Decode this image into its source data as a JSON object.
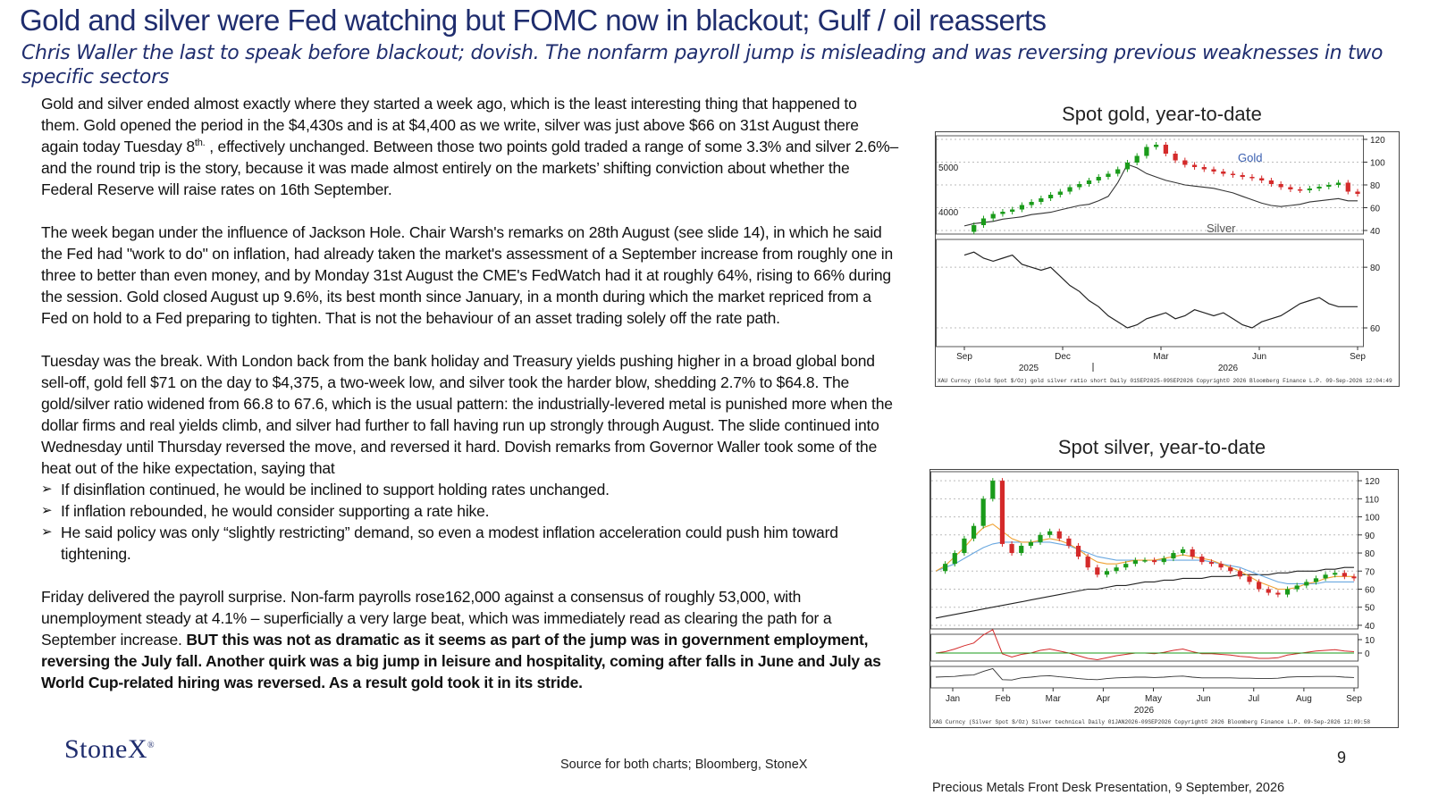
{
  "title": "Gold and silver were Fed watching but FOMC now in blackout; Gulf / oil reasserts",
  "subtitle": "Chris Waller the last to speak before blackout; dovish.  The nonfarm payroll jump is misleading and was reversing previous weaknesses in two specific sectors",
  "body": {
    "p1": "Gold and silver ended almost exactly where they started a week ago, which is the least interesting thing that happened to them. Gold opened the period in the $4,430s and is at $4,400 as we write, silver was just above $66 on 31st August there again today Tuesday 8",
    "p1_sup": "th.",
    "p1_end": " , effectively unchanged. Between those two points gold traded a range of some 3.3% and silver 2.6%– and the round trip is the story, because it was made almost entirely on the markets’ shifting conviction about whether the Federal Reserve will raise rates on 16th  September.",
    "p2": "The week began under the influence of Jackson Hole. Chair Warsh's remarks on 28th August (see slide 14), in which he said the Fed had \"work to do\" on inflation, had already taken the market's assessment of a September increase from roughly one in three to better than even money, and by Monday 31st August the CME's FedWatch had it at roughly 64%, rising to 66% during the session. Gold closed August up 9.6%, its best month since January, in a month during which the market repriced from a Fed on hold to a Fed preparing to tighten. That is not the behaviour of an asset trading solely off the rate path.",
    "p3": "Tuesday was the break. With London back from the bank holiday and Treasury yields pushing higher in a broad global bond sell-off, gold fell $71 on the day to $4,375, a two-week low, and silver took the harder blow, shedding 2.7% to $64.8. The gold/silver ratio widened from 66.8 to 67.6, which is the usual pattern: the industrially-levered metal is punished more when the dollar firms and real yields climb, and silver had further to fall having run up strongly through August. The slide continued into Wednesday  until Thursday reversed the move, and reversed it hard. Dovish remarks from Governor Waller took some of the heat out of the hike expectation, saying that",
    "bullet_marker": "➢",
    "bullets": [
      "If disinflation continued, he would be inclined to support holding rates unchanged.",
      "If inflation rebounded, he would consider supporting a rate hike.",
      "He said policy was only “slightly restricting” demand, so even a modest inflation acceleration could push him toward tightening."
    ],
    "p4": " Friday delivered the payroll surprise. Non-farm payrolls rose162,000 against a consensus of roughly 53,000, with unemployment steady at 4.1% – superficially a very large beat, which was immediately read as clearing the path for a September increase. ",
    "p4_bold": " BUT this was not as dramatic as it seems as part of the jump was in government employment, reversing the July fall.  Another quirk was a big jump in leisure and hospitality, coming after falls in June and July as World Cup-related hiring was reversed.  As a result gold took it in its stride."
  },
  "chart_data": [
    {
      "type": "line",
      "title": "Spot gold, year-to-date",
      "series_labels": {
        "gold": "Gold",
        "silver": "Silver"
      },
      "x_ticks": [
        "Sep",
        "Dec",
        "Mar",
        "Jun",
        "Sep"
      ],
      "x_years": [
        "2025",
        "2026"
      ],
      "left_axis_ticks": [
        4000,
        5000
      ],
      "right_axis_ticks": [
        40,
        60,
        80,
        100,
        120
      ],
      "lower_panel_ticks": [
        60,
        80
      ],
      "footer_text": "XAU Curncy (Gold Spot  $/Oz) gold silver ratio short Daily 01SEP2025-09SEP2026    Copyright© 2026 Bloomberg Finance L.P.    09-Sep-2026 12:04:49",
      "gold_y": [
        3550,
        3700,
        3850,
        3950,
        4000,
        4050,
        4150,
        4220,
        4300,
        4380,
        4450,
        4550,
        4620,
        4700,
        4780,
        4850,
        4950,
        5100,
        5250,
        5450,
        5500,
        5300,
        5150,
        5050,
        5000,
        4950,
        4900,
        4850,
        4820,
        4780,
        4750,
        4700,
        4620,
        4550,
        4500,
        4480,
        4520,
        4560,
        4600,
        4650,
        4450,
        4400
      ],
      "silver_y": [
        44,
        46,
        47,
        48,
        50,
        51,
        52,
        54,
        55,
        56,
        58,
        60,
        62,
        63,
        66,
        70,
        82,
        98,
        95,
        90,
        87,
        84,
        82,
        80,
        79,
        78,
        77,
        75,
        73,
        70,
        67,
        64,
        62,
        61,
        62,
        63,
        65,
        66,
        67,
        68,
        66,
        66
      ],
      "ratio_y": [
        84,
        85,
        83,
        82,
        83,
        84,
        81,
        80,
        79,
        80,
        77,
        74,
        72,
        69,
        67,
        64,
        62,
        60,
        61,
        63,
        64,
        65,
        63,
        64,
        66,
        65,
        64,
        65,
        63,
        61,
        60,
        62,
        63,
        64,
        66,
        68,
        69,
        70,
        68,
        67,
        67,
        67
      ]
    },
    {
      "type": "line",
      "title": "Spot silver, year-to-date",
      "x_ticks": [
        "Jan",
        "Feb",
        "Mar",
        "Apr",
        "May",
        "Jun",
        "Jul",
        "Aug",
        "Sep"
      ],
      "x_year": "2026",
      "right_axis_ticks": [
        40,
        50,
        60,
        70,
        80,
        90,
        100,
        110,
        120
      ],
      "lower_panel_ticks": [
        0,
        10
      ],
      "footer_text": "XAG Curncy (Silver Spot  $/Oz) Silver technical Daily 01JAN2026-09SEP2026   Copyright© 2026 Bloomberg Finance L.P.   09-Sep-2026 12:09:58",
      "price_y": [
        70,
        74,
        80,
        88,
        95,
        110,
        120,
        85,
        80,
        84,
        86,
        90,
        92,
        88,
        84,
        78,
        72,
        68,
        70,
        72,
        74,
        76,
        76,
        75,
        77,
        80,
        82,
        78,
        75,
        74,
        72,
        70,
        67,
        64,
        60,
        58,
        57,
        60,
        62,
        64,
        66,
        68,
        69,
        67,
        66
      ],
      "ma_fast_y": [
        70,
        73,
        78,
        83,
        89,
        94,
        96,
        92,
        88,
        86,
        86,
        87,
        88,
        87,
        85,
        82,
        78,
        75,
        74,
        74,
        75,
        76,
        76,
        76,
        77,
        78,
        79,
        78,
        77,
        76,
        74,
        72,
        70,
        67,
        64,
        62,
        60,
        60,
        61,
        63,
        64,
        66,
        67,
        67,
        67
      ],
      "ma_mid_y": [
        70,
        72,
        74,
        77,
        80,
        83,
        85,
        86,
        86,
        86,
        86,
        86,
        86,
        85,
        84,
        82,
        80,
        78,
        77,
        76,
        76,
        76,
        76,
        76,
        76,
        76,
        76,
        76,
        76,
        75,
        74,
        73,
        72,
        70,
        68,
        66,
        64,
        63,
        63,
        63,
        63,
        64,
        64,
        64,
        64
      ],
      "ma_slow_y": [
        44,
        45,
        46,
        47,
        48,
        49,
        50,
        51,
        52,
        53,
        54,
        55,
        56,
        57,
        58,
        59,
        60,
        60,
        61,
        62,
        62,
        63,
        64,
        64,
        65,
        65,
        66,
        66,
        66,
        67,
        67,
        67,
        68,
        68,
        68,
        68,
        69,
        69,
        70,
        70,
        70,
        71,
        71,
        72,
        72
      ]
    }
  ],
  "logo_text": "StoneX",
  "logo_mark": "®",
  "source": "Source for both charts; Bloomberg, StoneX",
  "page_number": "9",
  "footer": "Precious Metals Front Desk Presentation, 9 September, 2026",
  "colors": {
    "title": "#1f2d6e",
    "candle_up": "#1a9b1a",
    "candle_down": "#d42a2a",
    "ma_orange": "#f0a030",
    "ma_blue": "#6aa8e0",
    "ma_black": "#222222",
    "gold_label": "#3a5fb0"
  }
}
